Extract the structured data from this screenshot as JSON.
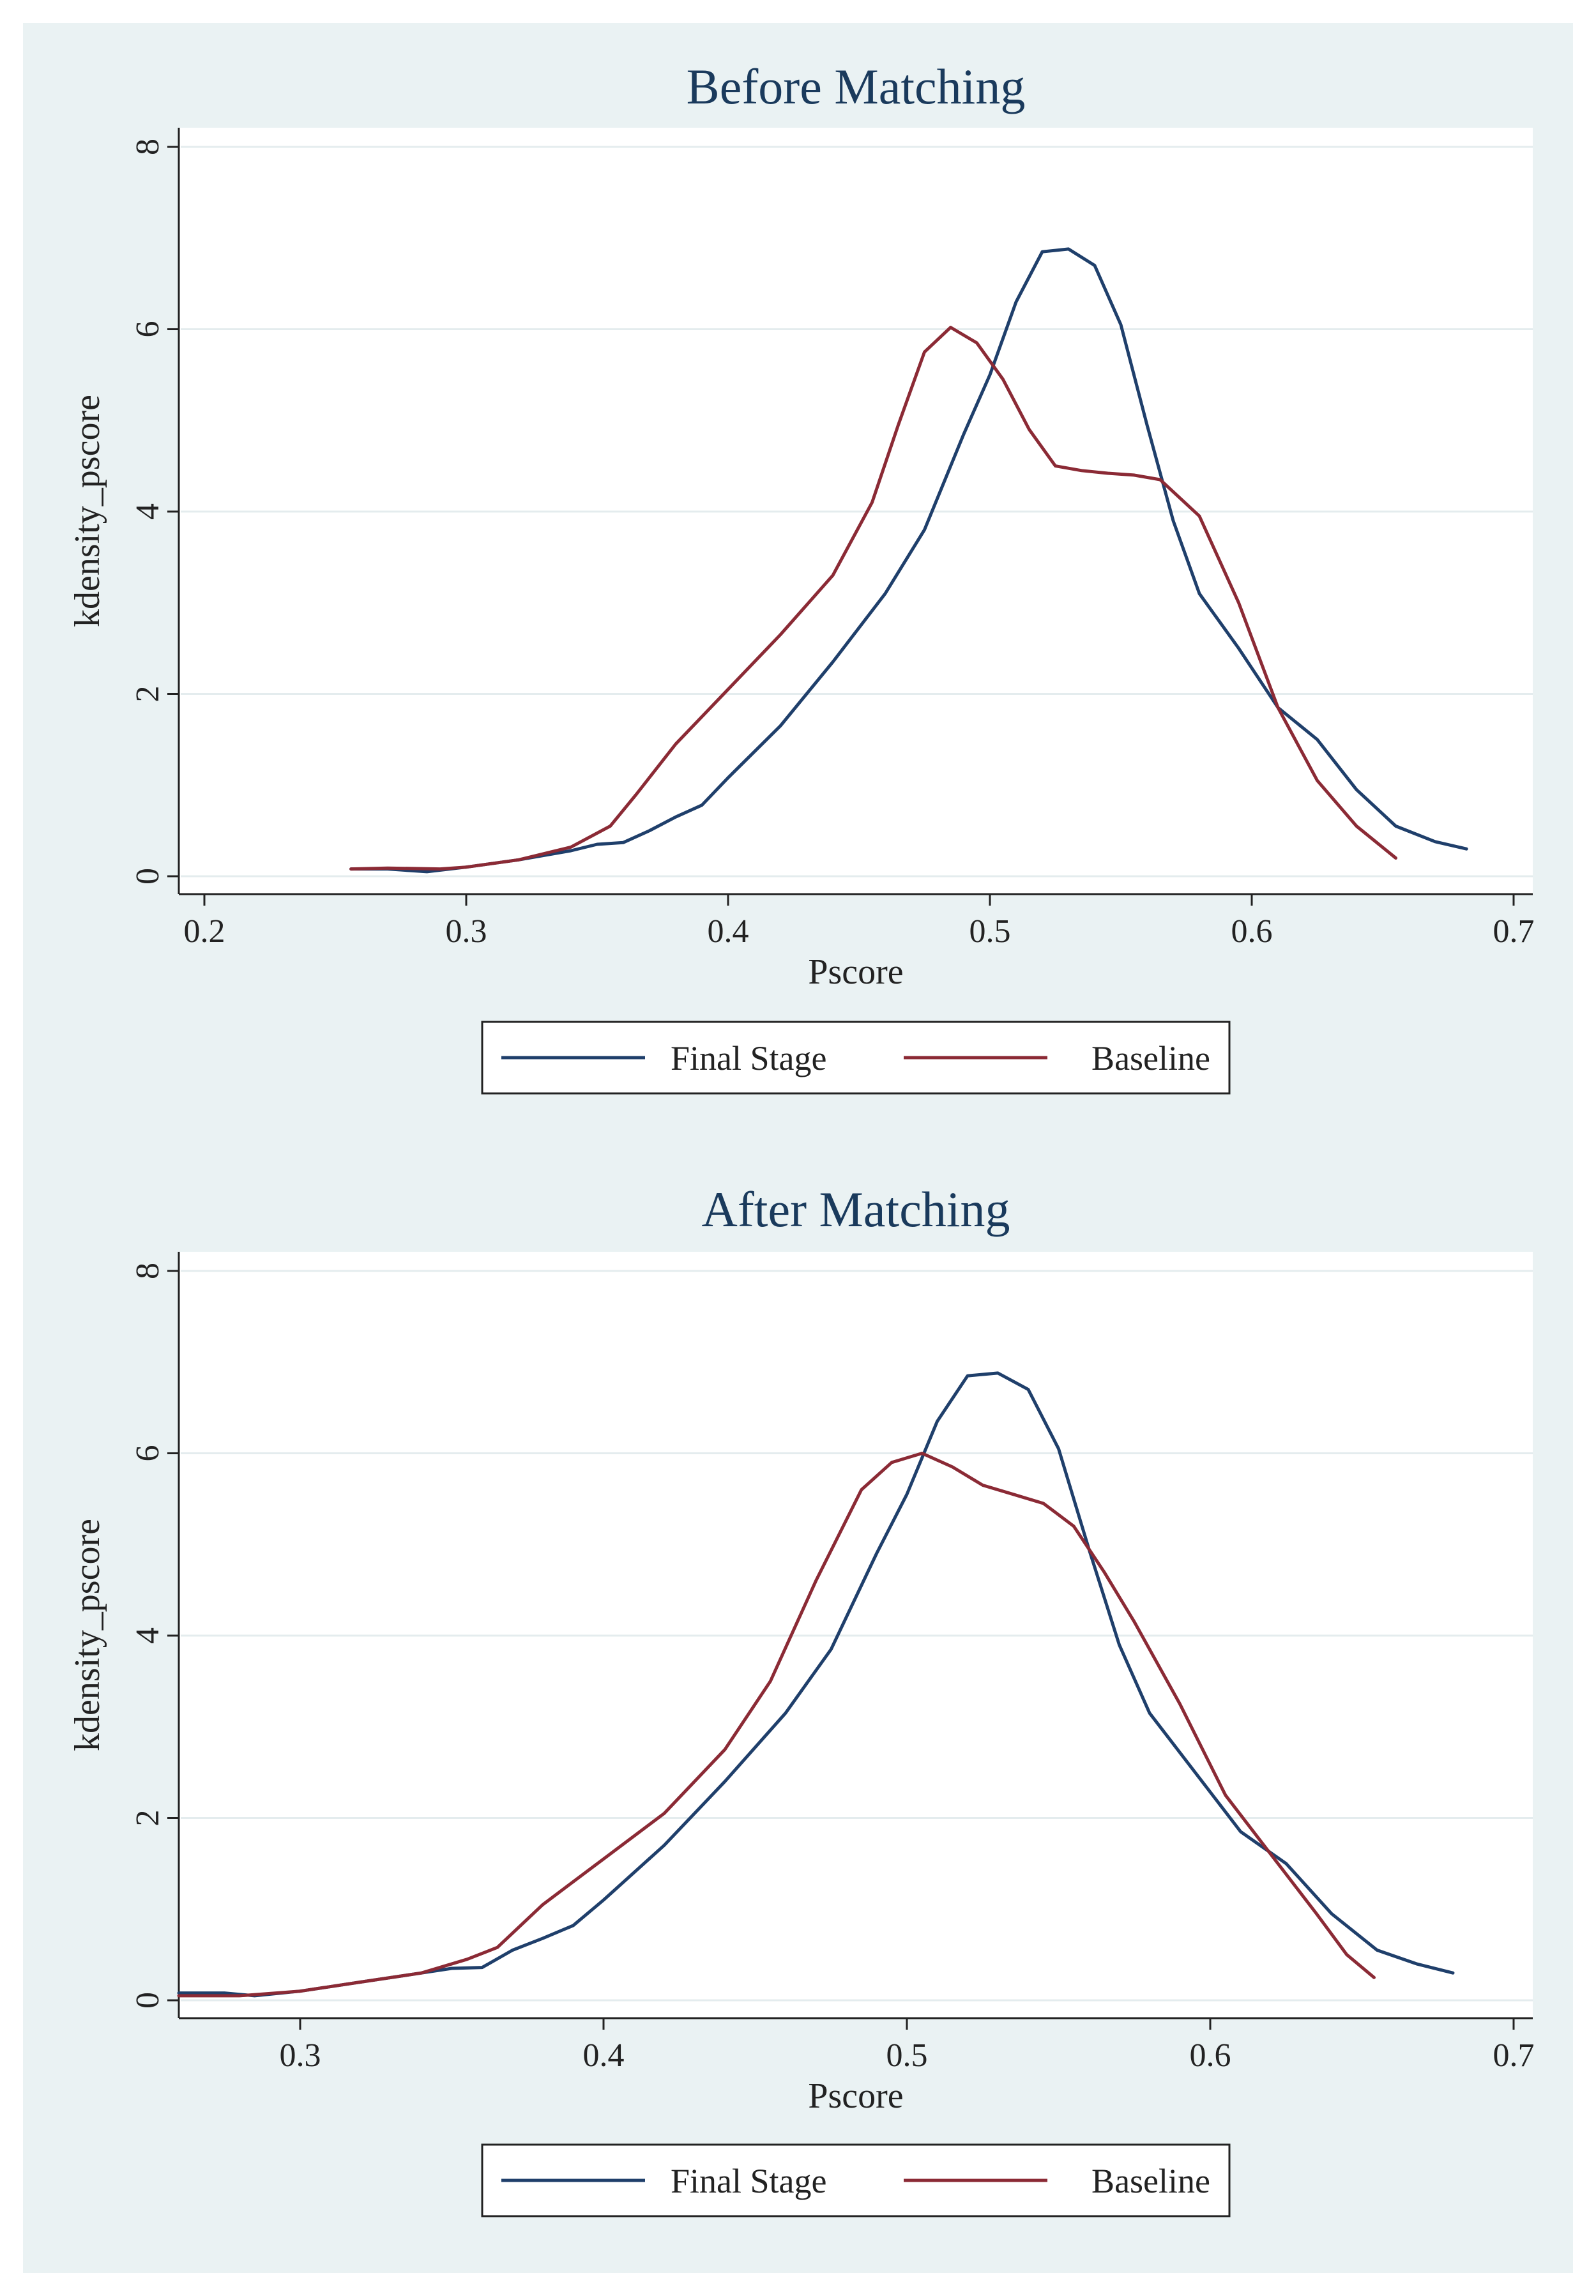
{
  "chart_data": [
    {
      "type": "line",
      "title": "Before Matching",
      "xlabel": "Pscore",
      "ylabel": "kdensity_pscore",
      "xlim": [
        0.2,
        0.7
      ],
      "ylim": [
        0,
        8
      ],
      "xticks": [
        0.2,
        0.3,
        0.4,
        0.5,
        0.6,
        0.7
      ],
      "xtick_labels": [
        "0.2",
        "0.3",
        "0.4",
        "0.5",
        "0.6",
        "0.7"
      ],
      "yticks": [
        0,
        2,
        4,
        6,
        8
      ],
      "ytick_labels": [
        "0",
        "2",
        "4",
        "6",
        "8"
      ],
      "grid": true,
      "legend_position": "bottom",
      "series": [
        {
          "name": "Final Stage",
          "color": "#1f3f6b",
          "points": [
            [
              0.256,
              0.08
            ],
            [
              0.27,
              0.08
            ],
            [
              0.285,
              0.05
            ],
            [
              0.3,
              0.1
            ],
            [
              0.32,
              0.18
            ],
            [
              0.34,
              0.28
            ],
            [
              0.35,
              0.35
            ],
            [
              0.36,
              0.37
            ],
            [
              0.37,
              0.5
            ],
            [
              0.38,
              0.65
            ],
            [
              0.39,
              0.78
            ],
            [
              0.4,
              1.08
            ],
            [
              0.42,
              1.65
            ],
            [
              0.44,
              2.35
            ],
            [
              0.46,
              3.1
            ],
            [
              0.475,
              3.8
            ],
            [
              0.49,
              4.85
            ],
            [
              0.5,
              5.5
            ],
            [
              0.51,
              6.3
            ],
            [
              0.52,
              6.85
            ],
            [
              0.53,
              6.88
            ],
            [
              0.54,
              6.7
            ],
            [
              0.55,
              6.05
            ],
            [
              0.56,
              4.95
            ],
            [
              0.57,
              3.9
            ],
            [
              0.58,
              3.1
            ],
            [
              0.595,
              2.5
            ],
            [
              0.61,
              1.85
            ],
            [
              0.625,
              1.5
            ],
            [
              0.64,
              0.95
            ],
            [
              0.655,
              0.55
            ],
            [
              0.67,
              0.38
            ],
            [
              0.682,
              0.3
            ]
          ]
        },
        {
          "name": "Baseline",
          "color": "#8b2a35",
          "points": [
            [
              0.256,
              0.08
            ],
            [
              0.27,
              0.09
            ],
            [
              0.29,
              0.08
            ],
            [
              0.3,
              0.1
            ],
            [
              0.32,
              0.18
            ],
            [
              0.34,
              0.32
            ],
            [
              0.355,
              0.55
            ],
            [
              0.365,
              0.9
            ],
            [
              0.38,
              1.45
            ],
            [
              0.4,
              2.05
            ],
            [
              0.42,
              2.65
            ],
            [
              0.44,
              3.3
            ],
            [
              0.455,
              4.1
            ],
            [
              0.465,
              4.95
            ],
            [
              0.475,
              5.75
            ],
            [
              0.485,
              6.02
            ],
            [
              0.495,
              5.85
            ],
            [
              0.505,
              5.45
            ],
            [
              0.515,
              4.9
            ],
            [
              0.525,
              4.5
            ],
            [
              0.535,
              4.45
            ],
            [
              0.545,
              4.42
            ],
            [
              0.555,
              4.4
            ],
            [
              0.565,
              4.35
            ],
            [
              0.58,
              3.95
            ],
            [
              0.595,
              3.0
            ],
            [
              0.61,
              1.85
            ],
            [
              0.625,
              1.05
            ],
            [
              0.64,
              0.55
            ],
            [
              0.655,
              0.2
            ]
          ]
        }
      ]
    },
    {
      "type": "line",
      "title": "After Matching",
      "xlabel": "Pscore",
      "ylabel": "kdensity_pscore",
      "xlim": [
        0.26,
        0.7
      ],
      "ylim": [
        0,
        8
      ],
      "xticks": [
        0.3,
        0.4,
        0.5,
        0.6,
        0.7
      ],
      "xtick_labels": [
        "0.3",
        "0.4",
        "0.5",
        "0.6",
        "0.7"
      ],
      "yticks": [
        0,
        2,
        4,
        6,
        8
      ],
      "ytick_labels": [
        "0",
        "2",
        "4",
        "6",
        "8"
      ],
      "grid": true,
      "legend_position": "bottom",
      "series": [
        {
          "name": "Final Stage",
          "color": "#1f3f6b",
          "points": [
            [
              0.26,
              0.08
            ],
            [
              0.275,
              0.08
            ],
            [
              0.285,
              0.05
            ],
            [
              0.3,
              0.1
            ],
            [
              0.32,
              0.2
            ],
            [
              0.34,
              0.3
            ],
            [
              0.35,
              0.35
            ],
            [
              0.36,
              0.36
            ],
            [
              0.37,
              0.55
            ],
            [
              0.38,
              0.68
            ],
            [
              0.39,
              0.82
            ],
            [
              0.4,
              1.1
            ],
            [
              0.42,
              1.7
            ],
            [
              0.44,
              2.4
            ],
            [
              0.46,
              3.15
            ],
            [
              0.475,
              3.85
            ],
            [
              0.49,
              4.9
            ],
            [
              0.5,
              5.55
            ],
            [
              0.51,
              6.35
            ],
            [
              0.52,
              6.85
            ],
            [
              0.53,
              6.88
            ],
            [
              0.54,
              6.7
            ],
            [
              0.55,
              6.05
            ],
            [
              0.56,
              4.95
            ],
            [
              0.57,
              3.9
            ],
            [
              0.58,
              3.15
            ],
            [
              0.595,
              2.5
            ],
            [
              0.61,
              1.85
            ],
            [
              0.625,
              1.5
            ],
            [
              0.64,
              0.95
            ],
            [
              0.655,
              0.55
            ],
            [
              0.668,
              0.4
            ],
            [
              0.68,
              0.3
            ]
          ]
        },
        {
          "name": "Baseline",
          "color": "#8b2a35",
          "points": [
            [
              0.26,
              0.05
            ],
            [
              0.28,
              0.05
            ],
            [
              0.3,
              0.1
            ],
            [
              0.32,
              0.2
            ],
            [
              0.34,
              0.3
            ],
            [
              0.355,
              0.45
            ],
            [
              0.365,
              0.58
            ],
            [
              0.38,
              1.05
            ],
            [
              0.4,
              1.55
            ],
            [
              0.42,
              2.05
            ],
            [
              0.44,
              2.75
            ],
            [
              0.455,
              3.5
            ],
            [
              0.47,
              4.6
            ],
            [
              0.485,
              5.6
            ],
            [
              0.495,
              5.9
            ],
            [
              0.505,
              6.0
            ],
            [
              0.515,
              5.85
            ],
            [
              0.525,
              5.65
            ],
            [
              0.535,
              5.55
            ],
            [
              0.545,
              5.45
            ],
            [
              0.555,
              5.2
            ],
            [
              0.565,
              4.7
            ],
            [
              0.575,
              4.15
            ],
            [
              0.59,
              3.25
            ],
            [
              0.605,
              2.25
            ],
            [
              0.62,
              1.6
            ],
            [
              0.635,
              0.95
            ],
            [
              0.645,
              0.5
            ],
            [
              0.654,
              0.25
            ]
          ]
        }
      ]
    }
  ]
}
